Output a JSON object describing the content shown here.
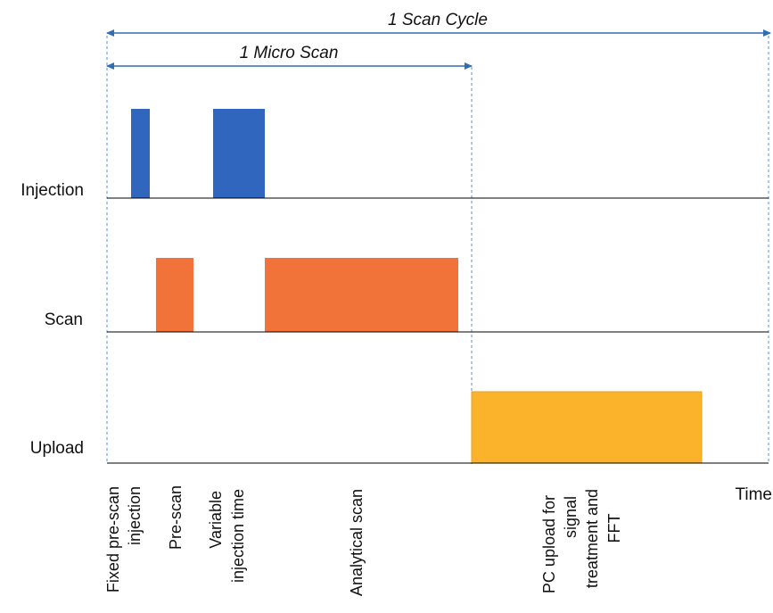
{
  "diagram": {
    "scan_cycle_label": "1 Scan Cycle",
    "micro_scan_label": "1 Micro Scan",
    "time_label": "Time",
    "rows": [
      {
        "id": "injection",
        "label": "Injection",
        "color": "#3066BE"
      },
      {
        "id": "scan",
        "label": "Scan",
        "color": "#F2733A"
      },
      {
        "id": "upload",
        "label": "Upload",
        "color": "#FBB32B"
      }
    ],
    "phases": [
      {
        "lines": [
          "Fixed pre-scan",
          "injection"
        ]
      },
      {
        "lines": [
          "Pre-scan"
        ]
      },
      {
        "lines": [
          "Variable",
          "injection time"
        ]
      },
      {
        "lines": [
          "Analytical scan"
        ]
      },
      {
        "lines": [
          "PC upload for",
          "signal",
          "treatment and",
          "FFT"
        ]
      }
    ],
    "colors": {
      "axis": "#000000",
      "arrow": "#2F6DB5",
      "dashed": "#5B8FD0"
    }
  }
}
